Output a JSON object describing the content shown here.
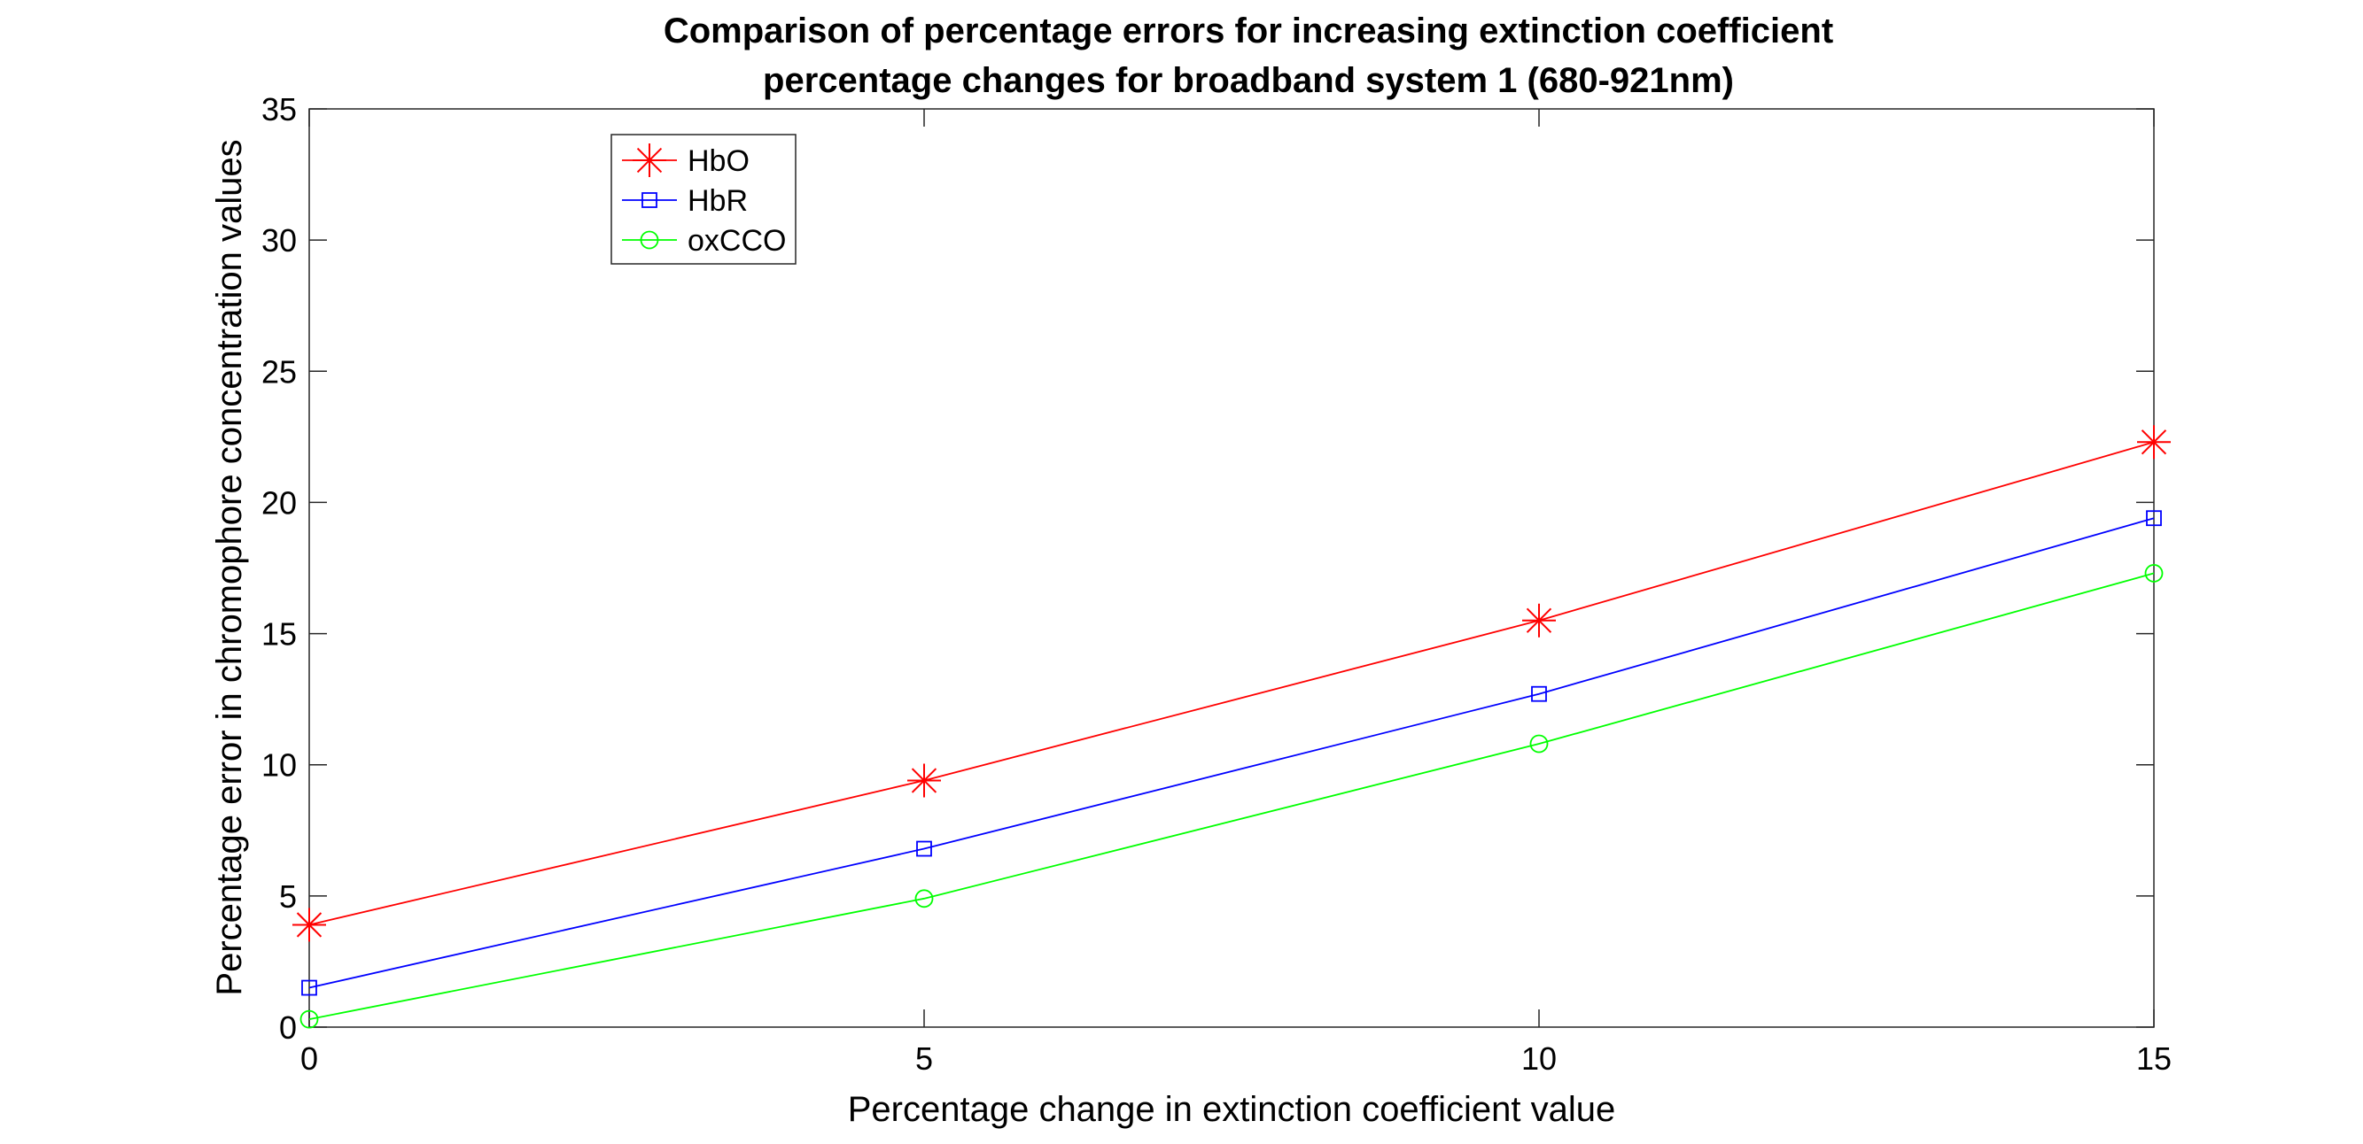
{
  "chart_data": {
    "type": "line",
    "title": "Comparison of percentage errors for increasing extinction coefficient",
    "subtitle": "percentage changes for broadband system 1 (680-921nm)",
    "xlabel": "Percentage change in extinction coefficient value",
    "ylabel": "Percentage error in chromophore concentration values",
    "x": [
      0,
      5,
      10,
      15
    ],
    "xlim": [
      0,
      15
    ],
    "ylim": [
      0,
      35
    ],
    "xticks": [
      "0",
      "5",
      "10",
      "15"
    ],
    "yticks": [
      "0",
      "5",
      "10",
      "15",
      "20",
      "25",
      "30",
      "35"
    ],
    "grid": false,
    "legend_position": "top-left",
    "series": [
      {
        "name": "HbO",
        "values": [
          3.9,
          9.4,
          15.5,
          22.3
        ],
        "color": "#ff0000",
        "marker": "asterisk"
      },
      {
        "name": "HbR",
        "values": [
          1.5,
          6.8,
          12.7,
          19.4
        ],
        "color": "#0000ff",
        "marker": "square"
      },
      {
        "name": "oxCCO",
        "values": [
          0.3,
          4.9,
          10.8,
          17.3
        ],
        "color": "#00ff00",
        "marker": "circle"
      }
    ]
  }
}
